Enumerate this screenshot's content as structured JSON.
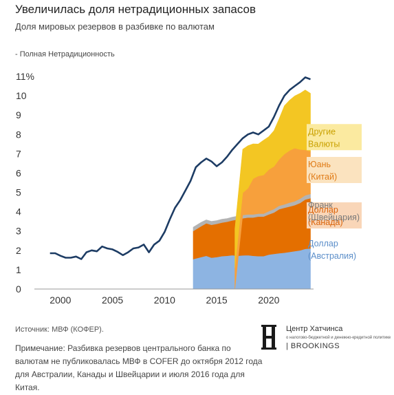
{
  "header": {
    "title": "Увеличилась доля нетрадиционных запасов",
    "subtitle": "Доля мировых резервов в разбивке по валютам",
    "legend_line": "- Полная Нетрадиционность"
  },
  "chart_data": {
    "type": "area",
    "ylim": [
      0,
      11
    ],
    "xlim": [
      1997.5,
      2024.3
    ],
    "y_ticks": [
      {
        "v": 0,
        "label": "0"
      },
      {
        "v": 1,
        "label": "1"
      },
      {
        "v": 2,
        "label": "2"
      },
      {
        "v": 3,
        "label": "3"
      },
      {
        "v": 4,
        "label": "4"
      },
      {
        "v": 5,
        "label": "5"
      },
      {
        "v": 6,
        "label": "6"
      },
      {
        "v": 7,
        "label": "7"
      },
      {
        "v": 8,
        "label": "8"
      },
      {
        "v": 9,
        "label": "9"
      },
      {
        "v": 10,
        "label": "10"
      },
      {
        "v": 11,
        "label": "11%"
      }
    ],
    "x_ticks": [
      {
        "v": 2000,
        "label": "2000"
      },
      {
        "v": 2005,
        "label": "2005"
      },
      {
        "v": 2010,
        "label": "2010"
      },
      {
        "v": 2015,
        "label": "2015"
      },
      {
        "v": 2020,
        "label": "2020"
      }
    ],
    "total": {
      "name": "Полная Нетрадиционность",
      "color": "#1d3c64",
      "points": [
        [
          1999,
          1.85
        ],
        [
          1999.5,
          1.85
        ],
        [
          2000,
          1.72
        ],
        [
          2000.5,
          1.62
        ],
        [
          2001,
          1.62
        ],
        [
          2001.5,
          1.68
        ],
        [
          2002,
          1.55
        ],
        [
          2002.5,
          1.9
        ],
        [
          2003,
          2.0
        ],
        [
          2003.5,
          1.95
        ],
        [
          2004,
          2.2
        ],
        [
          2004.5,
          2.1
        ],
        [
          2005,
          2.05
        ],
        [
          2005.5,
          1.92
        ],
        [
          2006,
          1.75
        ],
        [
          2006.5,
          1.9
        ],
        [
          2007,
          2.1
        ],
        [
          2007.5,
          2.15
        ],
        [
          2008,
          2.3
        ],
        [
          2008.5,
          1.9
        ],
        [
          2009,
          2.3
        ],
        [
          2009.5,
          2.5
        ],
        [
          2010,
          2.95
        ],
        [
          2010.5,
          3.6
        ],
        [
          2011,
          4.2
        ],
        [
          2011.5,
          4.6
        ],
        [
          2012,
          5.1
        ],
        [
          2012.5,
          5.6
        ],
        [
          2013,
          6.3
        ],
        [
          2013.5,
          6.55
        ],
        [
          2014,
          6.75
        ],
        [
          2014.5,
          6.6
        ],
        [
          2015,
          6.35
        ],
        [
          2015.5,
          6.55
        ],
        [
          2016,
          6.85
        ],
        [
          2016.5,
          7.2
        ],
        [
          2017,
          7.5
        ],
        [
          2017.5,
          7.8
        ],
        [
          2018,
          8.0
        ],
        [
          2018.5,
          8.1
        ],
        [
          2019,
          8.0
        ],
        [
          2019.5,
          8.2
        ],
        [
          2020,
          8.4
        ],
        [
          2020.5,
          8.9
        ],
        [
          2021,
          9.5
        ],
        [
          2021.5,
          10.0
        ],
        [
          2022,
          10.3
        ],
        [
          2022.5,
          10.5
        ],
        [
          2023,
          10.7
        ],
        [
          2023.5,
          10.95
        ],
        [
          2024,
          10.85
        ]
      ]
    },
    "series": [
      {
        "key": "aud",
        "name": "Доллар (Австралия)",
        "color": "#8db4e2",
        "label_color": "#5b8ec9",
        "label_bg": "",
        "label_lines": [
          "Доллар",
          "(Австралия)"
        ],
        "start": 2012.75,
        "points": [
          [
            2012.75,
            1.55
          ],
          [
            2013.5,
            1.65
          ],
          [
            2014,
            1.72
          ],
          [
            2014.5,
            1.62
          ],
          [
            2015,
            1.65
          ],
          [
            2015.5,
            1.7
          ],
          [
            2016,
            1.72
          ],
          [
            2016.5,
            1.75
          ],
          [
            2017,
            1.72
          ],
          [
            2017.5,
            1.74
          ],
          [
            2018,
            1.75
          ],
          [
            2018.5,
            1.72
          ],
          [
            2019,
            1.7
          ],
          [
            2019.5,
            1.7
          ],
          [
            2020,
            1.78
          ],
          [
            2020.5,
            1.82
          ],
          [
            2021,
            1.85
          ],
          [
            2021.5,
            1.88
          ],
          [
            2022,
            1.92
          ],
          [
            2022.5,
            1.96
          ],
          [
            2023,
            2.0
          ],
          [
            2023.5,
            2.08
          ],
          [
            2024,
            2.1
          ]
        ]
      },
      {
        "key": "cad",
        "name": "Доллар (Канада)",
        "color": "#e46f00",
        "label_color": "#d9630a",
        "label_bg": "#f9d6b8",
        "label_lines": [
          "Доллар",
          "(Канада)"
        ],
        "start": 2012.75,
        "points": [
          [
            2012.75,
            1.45
          ],
          [
            2013.5,
            1.6
          ],
          [
            2014,
            1.68
          ],
          [
            2014.5,
            1.7
          ],
          [
            2015,
            1.72
          ],
          [
            2015.5,
            1.74
          ],
          [
            2016,
            1.76
          ],
          [
            2016.5,
            1.8
          ],
          [
            2017,
            1.88
          ],
          [
            2017.5,
            1.92
          ],
          [
            2018,
            1.95
          ],
          [
            2018.5,
            1.98
          ],
          [
            2019,
            2.05
          ],
          [
            2019.5,
            2.05
          ],
          [
            2020,
            2.08
          ],
          [
            2020.5,
            2.14
          ],
          [
            2021,
            2.28
          ],
          [
            2021.5,
            2.32
          ],
          [
            2022,
            2.35
          ],
          [
            2022.5,
            2.38
          ],
          [
            2023,
            2.45
          ],
          [
            2023.5,
            2.55
          ],
          [
            2024,
            2.6
          ]
        ]
      },
      {
        "key": "chf",
        "name": "Франк (Швейцария)",
        "color": "#b3b3b3",
        "label_color": "#7a7a7a",
        "label_bg": "",
        "label_lines": [
          "Франк",
          "(Швейцария)"
        ],
        "start": 2012.75,
        "points": [
          [
            2012.75,
            0.2
          ],
          [
            2013.5,
            0.2
          ],
          [
            2014,
            0.18
          ],
          [
            2014.5,
            0.18
          ],
          [
            2015,
            0.17
          ],
          [
            2015.5,
            0.17
          ],
          [
            2016,
            0.17
          ],
          [
            2016.5,
            0.17
          ],
          [
            2017,
            0.17
          ],
          [
            2017.5,
            0.17
          ],
          [
            2018,
            0.16
          ],
          [
            2018.5,
            0.16
          ],
          [
            2019,
            0.15
          ],
          [
            2019.5,
            0.15
          ],
          [
            2020,
            0.17
          ],
          [
            2020.5,
            0.18
          ],
          [
            2021,
            0.18
          ],
          [
            2021.5,
            0.18
          ],
          [
            2022,
            0.2
          ],
          [
            2022.5,
            0.2
          ],
          [
            2023,
            0.22
          ],
          [
            2023.5,
            0.22
          ],
          [
            2024,
            0.22
          ]
        ]
      },
      {
        "key": "cny",
        "name": "Юань (Китай)",
        "color": "#f7a03c",
        "label_color": "#e07b16",
        "label_bg": "#fbe3bf",
        "label_lines": [
          "Юань",
          "(Китай)"
        ],
        "start": 2016.75,
        "points": [
          [
            2016.75,
            1.1
          ],
          [
            2017.5,
            1.15
          ],
          [
            2018,
            1.35
          ],
          [
            2018.5,
            1.85
          ],
          [
            2019,
            1.95
          ],
          [
            2019.5,
            2.0
          ],
          [
            2020,
            2.15
          ],
          [
            2020.5,
            2.2
          ],
          [
            2021,
            2.4
          ],
          [
            2021.5,
            2.6
          ],
          [
            2022,
            2.7
          ],
          [
            2022.5,
            2.75
          ],
          [
            2023,
            2.55
          ],
          [
            2023.5,
            2.35
          ],
          [
            2024,
            2.2
          ]
        ]
      },
      {
        "key": "other",
        "name": "Другие Валюты",
        "color": "#f3c623",
        "label_color": "#c9a100",
        "label_bg": "#fbeaa0",
        "label_lines": [
          "Другие",
          "Валюты"
        ],
        "start": 2016.75,
        "points": [
          [
            2016.75,
            2.0
          ],
          [
            2017.5,
            2.25
          ],
          [
            2018,
            2.2
          ],
          [
            2018.5,
            1.8
          ],
          [
            2019,
            1.65
          ],
          [
            2019.5,
            1.8
          ],
          [
            2020,
            1.7
          ],
          [
            2020.5,
            1.85
          ],
          [
            2021,
            2.1
          ],
          [
            2021.5,
            2.5
          ],
          [
            2022,
            2.6
          ],
          [
            2022.5,
            2.7
          ],
          [
            2023,
            2.9
          ],
          [
            2023.5,
            3.1
          ],
          [
            2024,
            3.0
          ]
        ]
      }
    ]
  },
  "footer": {
    "source": "Источник: МВФ (КОФЕР).",
    "note": "Примечание: Разбивка резервов центрального банка по валютам не публиковалась МВФ в COFER до октября 2012 года для Австралии, Канады и Швейцарии и июля 2016 года для Китая."
  },
  "logo": {
    "name": "Центр Хатчинса",
    "tagline": "о налогово-бюджетной и денежно-кредитной политике",
    "org": "| BROOKINGS"
  }
}
